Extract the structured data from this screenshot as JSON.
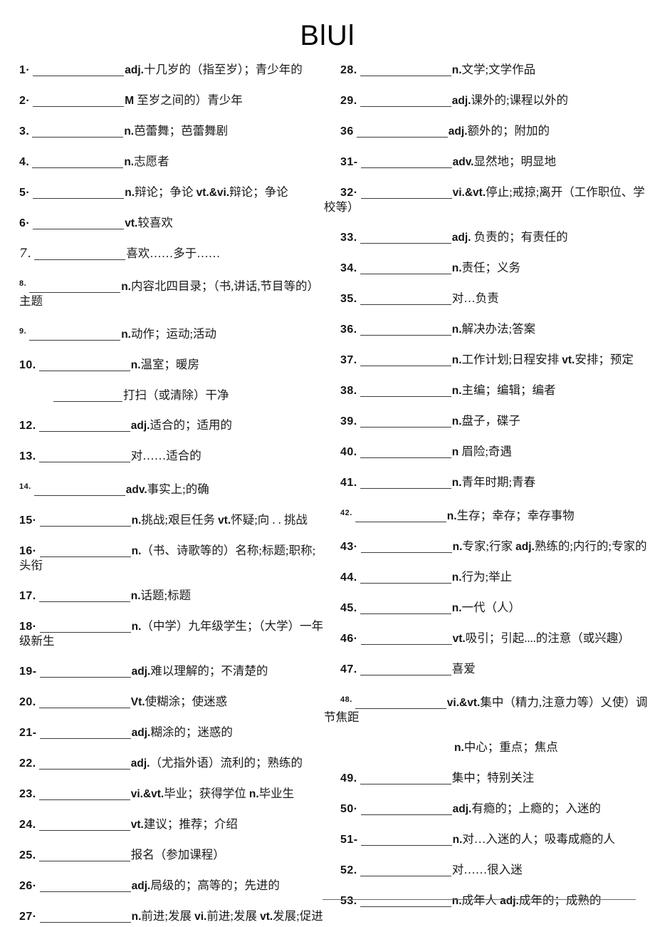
{
  "title": "BlUl",
  "columns": {
    "left": {
      "items": [
        {
          "num": "1·",
          "def": "adj.十几岁的（指至岁）；青少年的"
        },
        {
          "num": "2·",
          "def": "M 至岁之间的）青少年"
        },
        {
          "num": "3.",
          "def": "n.芭蕾舞；芭蕾舞剧"
        },
        {
          "num": "4.",
          "def": "n.志愿者"
        },
        {
          "num": "5·",
          "def": "n.辩论；争论 vt.&vi.辩论；争论"
        },
        {
          "num": "6·",
          "def": "vt.较喜欢"
        },
        {
          "num": "7.",
          "style": "italic",
          "def": "喜欢……多于……"
        },
        {
          "num": "8.",
          "style": "sup",
          "def": "n.内容北四目录；（书,讲话,节目等的）主题"
        },
        {
          "num": "9.",
          "style": "sup",
          "def": "n.动作；运动;活动"
        },
        {
          "num": "10.",
          "def": "n.温室；暖房"
        },
        {
          "num": "",
          "indent": 48,
          "blank_w": 97,
          "def": "打扫（或清除）干净"
        },
        {
          "num": "12.",
          "def": "adj.适合的；适用的"
        },
        {
          "num": "13.",
          "def": "对……适合的"
        },
        {
          "num": "14.",
          "style": "sup",
          "def": "adv.事实上;的确"
        },
        {
          "num": "15·",
          "def": "n.挑战;艰巨任务 vt.怀疑;向 . . 挑战"
        },
        {
          "num": "16·",
          "def": "n.（书、诗歌等的）名称;标题;职称;头衔"
        },
        {
          "num": "17.",
          "def": "n.话题;标题"
        },
        {
          "num": "18·",
          "def": "n.（中学）九年级学生；（大学）一年级新生"
        },
        {
          "num": "19-",
          "def": "adj.难以理解的；不清楚的"
        },
        {
          "num": "20.",
          "def": "Vt.使糊涂；使迷惑"
        },
        {
          "num": "21-",
          "def": "adj.糊涂的；迷惑的"
        },
        {
          "num": "22.",
          "def": "adj.（尤指外语）流利的；熟练的"
        },
        {
          "num": "23.",
          "def": "vi.&vt.毕业；获得学位 n.毕业生"
        },
        {
          "num": "24.",
          "def": "vt.建议；推荐；介绍"
        },
        {
          "num": "25.",
          "def": "报名（参加课程）"
        },
        {
          "num": "26·",
          "def": "adj.局级的；高等的；先进的"
        },
        {
          "num": "27·",
          "def": "n.前进;发展 vi.前进;发展 vt.发展;促进"
        }
      ]
    },
    "right": {
      "items": [
        {
          "num": "28.",
          "def": "n.文学;文学作品"
        },
        {
          "num": "29.",
          "def": "adj.课外的;课程以外的"
        },
        {
          "num": "36",
          "def": "adj.额外的；附加的"
        },
        {
          "num": "31-",
          "def": "adv.显然地；明显地"
        },
        {
          "num": "32·",
          "def": "vi.&vt.停止;戒掠;离开（工作职位、学校等）"
        },
        {
          "num": "33.",
          "def": "adj. 负责的；有责任的"
        },
        {
          "num": "34.",
          "def": "n.责任；义务"
        },
        {
          "num": "35.",
          "def": "对…负责"
        },
        {
          "num": "36.",
          "def": "n.解决办法;答案"
        },
        {
          "num": "37.",
          "def": "n.工作计划;日程安排 vt.安排；预定"
        },
        {
          "num": "38.",
          "def": "n.主编；编辑；编者"
        },
        {
          "num": "39.",
          "def": "n.盘子，碟子"
        },
        {
          "num": "40.",
          "def": "n 眉险;奇遇"
        },
        {
          "num": "41.",
          "def": "n.青年时期;青春"
        },
        {
          "num": "42.",
          "style": "sup",
          "def": "n.生存；幸存；幸存事物"
        },
        {
          "num": "43·",
          "def": "n.专家;行家 adj.熟练的;内行的;专家的"
        },
        {
          "num": "44.",
          "def": "n.行为;举止"
        },
        {
          "num": "45.",
          "def": "n.一代（人）"
        },
        {
          "num": "46·",
          "def": "vt.吸引；引起....的注意（或兴趣）"
        },
        {
          "num": "47.",
          "def": "喜爱"
        },
        {
          "num": "48.",
          "style": "sup",
          "def": "vi.&vt.集中（精力,注意力等）乂使）调节焦距"
        },
        {
          "num": "",
          "blank": false,
          "indent": 183,
          "def": "n.中心；重点；焦点"
        },
        {
          "num": "49.",
          "def": "集中；特别关注"
        },
        {
          "num": "50·",
          "def": "adj.有瘾的；上瘾的；入迷的"
        },
        {
          "num": "51-",
          "def": "n.对…入迷的人；吸毒成瘾的人"
        },
        {
          "num": "52.",
          "def": "对……很入迷"
        },
        {
          "num": "53.",
          "def": "n.成年人 adj.成年的；成熟的"
        }
      ]
    }
  }
}
